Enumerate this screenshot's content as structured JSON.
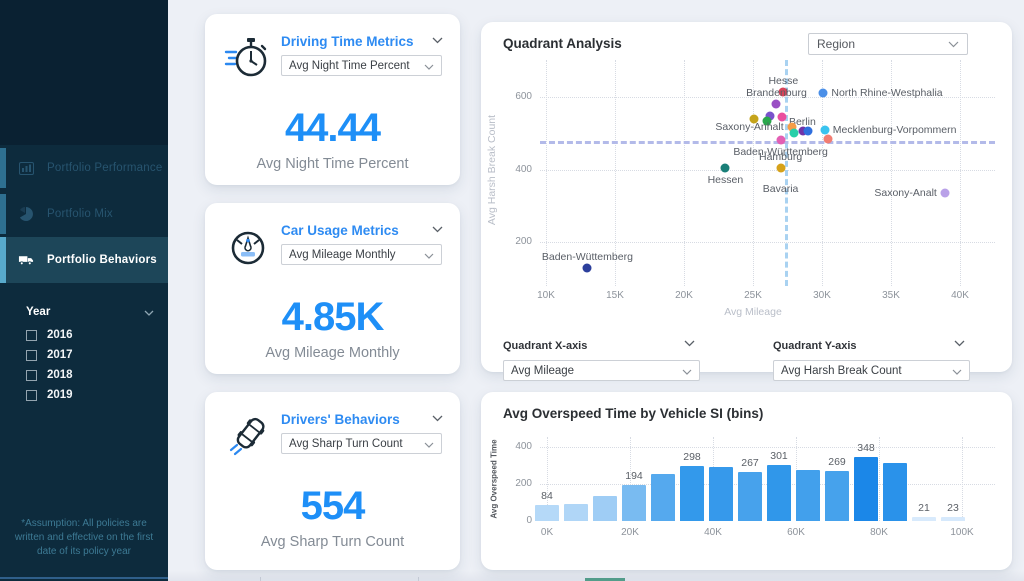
{
  "sidebar": {
    "nav": [
      {
        "label": "Portfolio Performance",
        "icon": "chart-icon",
        "selected": false
      },
      {
        "label": "Portfolio Mix",
        "icon": "pie-icon",
        "selected": false
      },
      {
        "label": "Portfolio Behaviors",
        "icon": "truck-icon",
        "selected": true
      }
    ],
    "year_filter": {
      "title": "Year",
      "options": [
        "2016",
        "2017",
        "2018",
        "2019"
      ],
      "checked": [
        false,
        false,
        false,
        false
      ]
    },
    "footnote": "*Assumption: All policies are written and effective on the first date of its policy year"
  },
  "cards": [
    {
      "icon": "stopwatch-icon",
      "title": "Driving Time Metrics",
      "dropdown": "Avg Night Time Percent",
      "value": "44.44",
      "value_label": "Avg Night Time Percent"
    },
    {
      "icon": "gauge-icon",
      "title": "Car Usage Metrics",
      "dropdown": "Avg Mileage Monthly",
      "value": "4.85K",
      "value_label": "Avg Mileage Monthly"
    },
    {
      "icon": "car-skid-icon",
      "title": "Drivers' Behaviors",
      "dropdown": "Avg Sharp Turn Count",
      "value": "554",
      "value_label": "Avg Sharp Turn Count"
    }
  ],
  "quadrant": {
    "title": "Quadrant Analysis",
    "region_dropdown": "Region",
    "x_control_label": "Quadrant X-axis",
    "x_control_value": "Avg Mileage",
    "y_control_label": "Quadrant Y-axis",
    "y_control_value": "Avg Harsh Break Count"
  },
  "bar_panel": {
    "title": "Avg Overspeed Time by Vehicle SI (bins)"
  },
  "colors": {
    "accent_blue": "#1e8ff7",
    "title_blue": "#2e8bf2",
    "sidebar_bg": "#0d2b3d",
    "sidebar_selected": "#1d4659",
    "ref_line_v": "#a9d2f1",
    "ref_line_h": "#b3bae9"
  },
  "chart_data": [
    {
      "type": "scatter",
      "title": "Quadrant Analysis",
      "xlabel": "Avg Mileage",
      "ylabel": "Avg Harsh Break Count",
      "x_ticks": [
        "10K",
        "15K",
        "20K",
        "25K",
        "30K",
        "35K",
        "40K"
      ],
      "x_tick_values": [
        10,
        15,
        20,
        25,
        30,
        35,
        40
      ],
      "y_ticks": [
        200,
        400,
        600
      ],
      "xlim_k": [
        9.6,
        42.5
      ],
      "ylim": [
        85,
        710
      ],
      "grid": true,
      "ref_lines": {
        "vertical_x_k": 27.3,
        "horizontal_y": 480
      },
      "points": [
        {
          "name": "Hesse",
          "x_k": 27.2,
          "y": 615,
          "color": "#d9435a",
          "label_pos": "above"
        },
        {
          "name": "North Rhine-Westphalia",
          "x_k": 30.1,
          "y": 612,
          "color": "#4a8fe8",
          "label_pos": "right"
        },
        {
          "name": "Brandenburg",
          "x_k": 26.7,
          "y": 582,
          "color": "#9a4fc4",
          "label_pos": "above"
        },
        {
          "name": "",
          "x_k": 25.1,
          "y": 540,
          "color": "#c5a41b",
          "label_pos": "none"
        },
        {
          "name": "",
          "x_k": 26.2,
          "y": 548,
          "color": "#7a52cc",
          "label_pos": "none"
        },
        {
          "name": "",
          "x_k": 26.0,
          "y": 533,
          "color": "#2aa84c",
          "label_pos": "none"
        },
        {
          "name": "Berlin",
          "x_k": 27.1,
          "y": 545,
          "color": "#ea4f9f",
          "label_pos": "right-below"
        },
        {
          "name": "Saxony-Anhalt",
          "x_k": 27.8,
          "y": 517,
          "color": "#f59d47",
          "label_pos": "left"
        },
        {
          "name": "",
          "x_k": 28.0,
          "y": 502,
          "color": "#27cfa9",
          "label_pos": "none"
        },
        {
          "name": "",
          "x_k": 28.6,
          "y": 506,
          "color": "#7033a8",
          "label_pos": "none"
        },
        {
          "name": "",
          "x_k": 29.0,
          "y": 506,
          "color": "#2f6fde",
          "label_pos": "none"
        },
        {
          "name": "Mecklenburg-Vorpommern",
          "x_k": 30.2,
          "y": 508,
          "color": "#39c3ef",
          "label_pos": "right"
        },
        {
          "name": "Baden-Württemberg",
          "x_k": 27.0,
          "y": 481,
          "color": "#e35fb4",
          "label_pos": "below"
        },
        {
          "name": "",
          "x_k": 30.4,
          "y": 483,
          "color": "#f27d72",
          "label_pos": "none"
        },
        {
          "name": "Hessen",
          "x_k": 23.0,
          "y": 404,
          "color": "#1a7f78",
          "label_pos": "below"
        },
        {
          "name": "Hamburg",
          "x_k": 27.0,
          "y": 404,
          "color": "#d6a21a",
          "label_pos": "above"
        },
        {
          "name": "Saxony-Analt",
          "x_k": 38.9,
          "y": 335,
          "color": "#b9a1e8",
          "label_pos": "left"
        },
        {
          "name": "Baden-Wüttemberg",
          "x_k": 13.0,
          "y": 128,
          "color": "#2c3f9c",
          "label_pos": "above"
        }
      ],
      "extra_labels": [
        {
          "text": "Bavaria",
          "x_k": 27.0,
          "y": 362
        }
      ]
    },
    {
      "type": "bar",
      "title": "Avg Overspeed Time by Vehicle SI (bins)",
      "xlabel": "",
      "ylabel": "Avg Overspeed Time",
      "x_ticks": [
        "0K",
        "20K",
        "40K",
        "60K",
        "80K",
        "100K"
      ],
      "y_ticks": [
        0,
        200,
        400
      ],
      "ylim": [
        0,
        450
      ],
      "grid": true,
      "values": [
        84,
        93,
        133,
        194,
        253,
        298,
        292,
        267,
        301,
        275,
        269,
        348,
        315,
        21,
        23
      ],
      "shown_labels": [
        "84",
        null,
        null,
        "194",
        null,
        "298",
        null,
        "267",
        "301",
        null,
        "269",
        "348",
        null,
        "21",
        "23"
      ],
      "bar_colors": [
        "#b5d9f8",
        "#b0d6f7",
        "#9fcdf5",
        "#79bbf1",
        "#55a9ee",
        "#3399eb",
        "#3699eb",
        "#47a2ec",
        "#3097ea",
        "#42a0ec",
        "#46a2ec",
        "#1b87e8",
        "#2a92ea",
        "#d8eafc",
        "#d6e9fc"
      ]
    }
  ]
}
